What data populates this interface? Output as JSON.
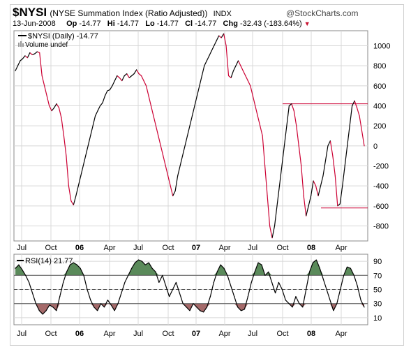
{
  "header": {
    "symbol": "$NYSI",
    "description": "(NYSE Summation Index (Ratio Adjusted))",
    "exchange": "INDX",
    "brand": "@StockCharts.com",
    "date": "13-Jun-2008",
    "open_label": "Op",
    "open": "-14.77",
    "high_label": "Hi",
    "high": "-14.77",
    "low_label": "Lo",
    "low": "-14.77",
    "close_label": "Cl",
    "close": "-14.77",
    "change_label": "Chg",
    "change": "-32.43 (-183.64%)",
    "change_arrow": "▼"
  },
  "colors": {
    "up": "#000000",
    "down": "#cc0033",
    "rsi_high": "#5a8a5a",
    "rsi_low": "#a56a6a",
    "hline": "#cc0033"
  },
  "chart_data": [
    {
      "type": "line",
      "legend": [
        "$NYSI (Daily) -14.77",
        "Volume undef"
      ],
      "ylim": [
        -950,
        1150
      ],
      "yticks": [
        1000,
        800,
        600,
        400,
        200,
        0,
        -200,
        -400,
        -600,
        -800
      ],
      "xticks": [
        "Jul",
        "Oct",
        "06",
        "Apr",
        "Jul",
        "Oct",
        "07",
        "Apr",
        "Jul",
        "Oct",
        "08",
        "Apr"
      ],
      "series": [
        {
          "values": [
            750,
            800,
            850,
            870,
            900,
            880,
            930,
            910,
            920,
            940,
            930,
            700,
            600,
            500,
            400,
            350,
            380,
            420,
            380,
            280,
            100,
            -100,
            -400,
            -550,
            -590,
            -500,
            -400,
            -300,
            -200,
            -100,
            0,
            100,
            200,
            300,
            350,
            400,
            430,
            500,
            550,
            560,
            600,
            650,
            700,
            680,
            650,
            700,
            720,
            680,
            700,
            720,
            760,
            720,
            700,
            650,
            600,
            500,
            400,
            300,
            200,
            100,
            0,
            -100,
            -200,
            -300,
            -400,
            -500,
            -450,
            -300,
            -200,
            -100,
            0,
            100,
            200,
            300,
            400,
            500,
            600,
            700,
            800,
            850,
            900,
            950,
            1000,
            1050,
            1100,
            1080,
            1120,
            1000,
            700,
            680,
            750,
            800,
            850,
            800,
            750,
            700,
            650,
            600,
            500,
            400,
            300,
            200,
            100,
            -200,
            -500,
            -800,
            -920,
            -800,
            -600,
            -400,
            -200,
            0,
            200,
            400,
            420,
            350,
            200,
            0,
            -200,
            -500,
            -700,
            -600,
            -500,
            -350,
            -400,
            -500,
            -400,
            -300,
            -150,
            0,
            50,
            -100,
            -300,
            -600,
            -580,
            -400,
            -200,
            0,
            200,
            400,
            450,
            380,
            300,
            150,
            0
          ]
        }
      ],
      "hlines": [
        420,
        -620
      ]
    },
    {
      "type": "line",
      "title": "RSI(14) 21.77",
      "ylim": [
        0,
        100
      ],
      "yticks": [
        90,
        70,
        50,
        30,
        10
      ],
      "xticks": [
        "Jul",
        "Oct",
        "06",
        "Apr",
        "Jul",
        "Oct",
        "07",
        "Apr",
        "Jul",
        "Oct",
        "08",
        "Apr"
      ],
      "series": [
        {
          "values": [
            80,
            85,
            78,
            70,
            60,
            45,
            30,
            20,
            15,
            20,
            28,
            25,
            20,
            40,
            60,
            75,
            85,
            88,
            85,
            80,
            70,
            50,
            35,
            25,
            20,
            30,
            25,
            35,
            28,
            20,
            30,
            45,
            60,
            70,
            80,
            88,
            92,
            90,
            85,
            88,
            80,
            75,
            60,
            70,
            55,
            40,
            50,
            60,
            45,
            30,
            25,
            20,
            30,
            25,
            20,
            18,
            25,
            40,
            60,
            75,
            85,
            80,
            70,
            55,
            40,
            25,
            20,
            22,
            40,
            60,
            75,
            88,
            85,
            70,
            75,
            60,
            45,
            60,
            50,
            35,
            30,
            25,
            40,
            30,
            25,
            50,
            75,
            88,
            92,
            80,
            65,
            50,
            35,
            20,
            30,
            50,
            70,
            82,
            80,
            70,
            55,
            35,
            25
          ]
        }
      ],
      "hlines": [
        70,
        50,
        30
      ]
    }
  ]
}
